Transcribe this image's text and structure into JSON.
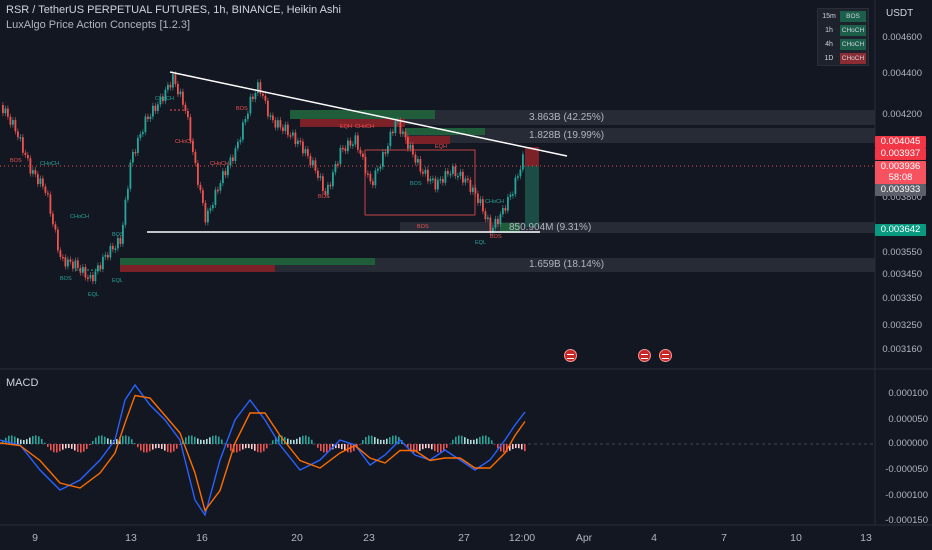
{
  "header": {
    "title": "RSR / TetherUS PERPETUAL FUTURES, 1h, BINANCE, Heikin Ashi",
    "indicator": "LuxAlgo Price Action Concepts [1.2.3]"
  },
  "currency": "USDT",
  "price_axis": [
    "0.004600",
    "0.004400",
    "0.004200",
    "0.003800",
    "0.003550",
    "0.003450",
    "0.003350",
    "0.003250",
    "0.003160"
  ],
  "price_tags": {
    "tag1": "0.004045",
    "tag2": "0.003937",
    "tag3": "0.003936",
    "countdown": "58:08",
    "tag4": "0.003933",
    "tag5": "0.003642"
  },
  "zones": {
    "z1": "3.863B (42.25%)",
    "z2": "1.828B (19.99%)",
    "z3": "850.904M (9.31%)",
    "z4": "1.659B (18.14%)"
  },
  "dates": [
    "9",
    "13",
    "16",
    "20",
    "23",
    "27",
    "12:00",
    "Apr",
    "4",
    "7",
    "10",
    "13"
  ],
  "macd": {
    "title": "MACD",
    "axis": [
      "0.000100",
      "0.000050",
      "0.000000",
      "-0.000050",
      "-0.000100",
      "-0.000150"
    ]
  },
  "mtf_table": [
    {
      "tf": "15m",
      "signal": "BOS",
      "color": "#1b5e4a"
    },
    {
      "tf": "1h",
      "signal": "CHoCH",
      "color": "#1b5e4a"
    },
    {
      "tf": "4h",
      "signal": "CHoCH",
      "color": "#1b5e4a"
    },
    {
      "tf": "1D",
      "signal": "CHoCH",
      "color": "#8b2b33"
    }
  ],
  "smc_labels": {
    "bos": "BOS",
    "choch": "CHoCH",
    "eql": "EQL",
    "eqh": "EQH"
  },
  "colors": {
    "background": "#131722",
    "bull": "#26a69a",
    "bear": "#ef5350",
    "macd_line": "#2962ff",
    "signal_line": "#ff6d00",
    "trendline": "#ffffff"
  }
}
